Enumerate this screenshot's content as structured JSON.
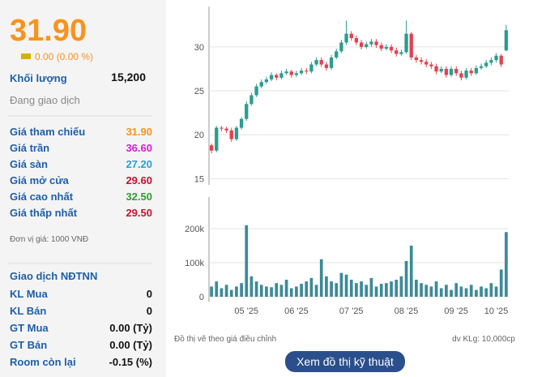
{
  "quote": {
    "price": "31.90",
    "change": "0.00 (0.00 %)",
    "volume_label": "Khối lượng",
    "volume": "15,200",
    "status": "Đang giao dịch",
    "prices": [
      {
        "label": "Giá tham chiếu",
        "value": "31.90",
        "color": "#f7931e"
      },
      {
        "label": "Giá trần",
        "value": "36.60",
        "color": "#d21fd2"
      },
      {
        "label": "Giá sàn",
        "value": "27.20",
        "color": "#2a9fd6"
      },
      {
        "label": "Giá mở cửa",
        "value": "29.60",
        "color": "#c8102e"
      },
      {
        "label": "Giá cao nhất",
        "value": "32.50",
        "color": "#2e9e2e"
      },
      {
        "label": "Giá thấp nhất",
        "value": "29.50",
        "color": "#c8102e"
      }
    ],
    "unit": "Đơn vị giá: 1000 VNĐ",
    "foreign": {
      "title": "Giao dịch NĐTNN",
      "rows": [
        {
          "label": "KL Mua",
          "value": "0"
        },
        {
          "label": "KL Bán",
          "value": "0"
        },
        {
          "label": "GT Mua",
          "value": "0.00 (Tỷ)"
        },
        {
          "label": "GT Bán",
          "value": "0.00 (Tỷ)"
        },
        {
          "label": "Room còn lại",
          "value": "-0.15 (%)"
        }
      ]
    }
  },
  "note_left": "Đồ thị vẽ theo giá điều chỉnh",
  "note_right": "dv KLg: 10,000cp",
  "button": "Xem đồ thị kỹ thuật",
  "chart_data": [
    {
      "type": "candlestick",
      "up_color": "#2a9d8f",
      "down_color": "#e5414f",
      "grid": true,
      "ylim": [
        14.3,
        34.6
      ],
      "yticks": [
        15,
        20,
        25,
        30
      ],
      "open": [
        18.8,
        18.2,
        20.8,
        20.7,
        20.5,
        19.5,
        20.8,
        21.8,
        23.5,
        24.5,
        25.5,
        26.0,
        26.3,
        26.8,
        26.5,
        27.0,
        27.2,
        26.8,
        27.0,
        27.3,
        27.2,
        28.0,
        28.5,
        28.0,
        27.6,
        28.8,
        29.5,
        30.5,
        31.5,
        31.0,
        30.5,
        30.0,
        30.3,
        30.6,
        30.2,
        29.8,
        30.0,
        29.6,
        29.2,
        29.4,
        31.5,
        28.8,
        28.5,
        28.3,
        28.0,
        27.8,
        27.2,
        27.5,
        26.8,
        27.5,
        27.0,
        26.5,
        27.3,
        27.0,
        27.6,
        27.8,
        28.2,
        28.5,
        29.0,
        29.6
      ],
      "high": [
        19.0,
        21.0,
        21.0,
        20.9,
        20.8,
        21.0,
        22.0,
        23.8,
        24.8,
        25.8,
        26.3,
        26.6,
        27.1,
        27.0,
        27.3,
        27.5,
        27.4,
        27.3,
        27.6,
        27.6,
        28.3,
        28.8,
        28.8,
        28.3,
        29.1,
        29.8,
        30.8,
        33.0,
        31.8,
        31.3,
        30.8,
        30.6,
        30.9,
        30.9,
        30.5,
        30.3,
        30.3,
        29.9,
        29.7,
        33.0,
        31.7,
        29.1,
        28.8,
        28.6,
        28.3,
        28.1,
        27.8,
        27.8,
        27.8,
        27.8,
        27.3,
        27.6,
        27.6,
        27.9,
        28.1,
        28.5,
        28.8,
        29.3,
        29.2,
        32.5
      ],
      "low": [
        17.9,
        18.0,
        20.4,
        20.2,
        19.2,
        19.3,
        20.6,
        21.6,
        23.3,
        24.3,
        25.3,
        25.8,
        26.1,
        26.2,
        26.3,
        26.8,
        26.5,
        26.6,
        26.8,
        26.9,
        27.0,
        27.8,
        27.7,
        27.3,
        27.4,
        28.6,
        29.3,
        30.2,
        30.7,
        30.2,
        29.7,
        29.8,
        30.0,
        29.9,
        29.5,
        29.6,
        29.3,
        28.9,
        29.0,
        29.2,
        28.5,
        28.2,
        28.0,
        27.7,
        27.5,
        26.9,
        27.0,
        26.5,
        26.6,
        26.7,
        26.2,
        26.3,
        26.7,
        26.8,
        27.4,
        27.6,
        27.9,
        28.2,
        27.7,
        29.5
      ],
      "close": [
        18.2,
        20.8,
        20.7,
        20.5,
        19.5,
        20.8,
        21.8,
        23.5,
        24.5,
        25.5,
        26.0,
        26.3,
        26.8,
        26.5,
        27.0,
        27.2,
        26.8,
        27.0,
        27.3,
        27.2,
        28.0,
        28.5,
        28.0,
        27.6,
        28.8,
        29.5,
        30.5,
        31.5,
        31.0,
        30.5,
        30.0,
        30.3,
        30.6,
        30.2,
        29.8,
        30.0,
        29.6,
        29.2,
        29.4,
        31.5,
        28.8,
        28.5,
        28.3,
        28.0,
        27.8,
        27.2,
        27.5,
        26.8,
        27.5,
        27.0,
        26.5,
        27.3,
        27.0,
        27.6,
        27.8,
        28.2,
        28.5,
        29.0,
        28.0,
        31.9
      ]
    },
    {
      "type": "bar",
      "color": "#3d8a97",
      "grid": true,
      "ylim": [
        0,
        293000
      ],
      "yticks": [
        0,
        {
          "value": 100000,
          "label": "100k"
        },
        {
          "value": 200000,
          "label": "200k"
        }
      ],
      "categories": [
        null,
        null,
        null,
        null,
        null,
        null,
        null,
        "05 '25",
        null,
        null,
        null,
        null,
        null,
        null,
        null,
        null,
        null,
        "06 '25",
        null,
        null,
        null,
        null,
        null,
        null,
        null,
        null,
        null,
        null,
        "07 '25",
        null,
        null,
        null,
        null,
        null,
        null,
        null,
        null,
        null,
        null,
        "08 '25",
        null,
        null,
        null,
        null,
        null,
        null,
        null,
        null,
        null,
        "09 '25",
        null,
        null,
        null,
        null,
        null,
        null,
        null,
        "10 '25",
        null,
        null
      ],
      "values": [
        30000,
        45000,
        25000,
        35000,
        20000,
        30000,
        40000,
        210000,
        60000,
        45000,
        35000,
        30000,
        28000,
        40000,
        35000,
        50000,
        25000,
        30000,
        38000,
        45000,
        55000,
        35000,
        110000,
        60000,
        45000,
        40000,
        70000,
        65000,
        50000,
        40000,
        45000,
        35000,
        55000,
        30000,
        38000,
        40000,
        45000,
        50000,
        60000,
        105000,
        150000,
        50000,
        40000,
        35000,
        30000,
        45000,
        25000,
        35000,
        20000,
        40000,
        30000,
        25000,
        35000,
        20000,
        30000,
        25000,
        40000,
        30000,
        80000,
        190000
      ]
    }
  ]
}
